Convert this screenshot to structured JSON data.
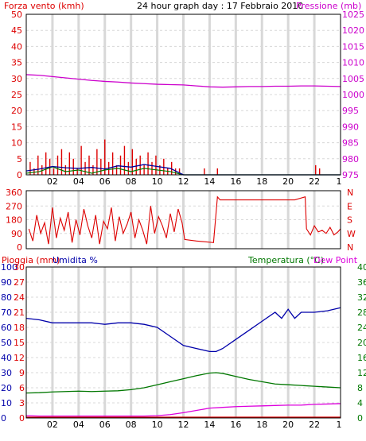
{
  "header": {
    "left_label": "Forza vento (kmh)",
    "title": "24 hour graph day : 17 Febbraio 2010",
    "right_label": "Pressione (mb)"
  },
  "colors": {
    "wind": "#dd0000",
    "pressure": "#cc00cc",
    "gust_blue": "#000099",
    "green": "#007700",
    "direction": "#dd0000",
    "humidity": "#0000aa",
    "temperature": "#007700",
    "dewpoint": "#dd00dd",
    "grid": "#d8d8d8",
    "frame": "#000000"
  },
  "chart_data": [
    {
      "type": "line",
      "name": "wind_pressure",
      "title": "24 hour graph day : 17 Febbraio 2010",
      "ylabel_left": "Forza vento (kmh)",
      "ylabel_right": "Pressione (mb)",
      "xticks": [
        "02",
        "04",
        "06",
        "08",
        "10",
        "12",
        "14",
        "16",
        "18",
        "20",
        "22",
        "1"
      ],
      "yticks_left": [
        "0",
        "5",
        "10",
        "15",
        "20",
        "25",
        "30",
        "35",
        "40",
        "45",
        "50"
      ],
      "yticks_right": [
        "975",
        "980",
        "985",
        "990",
        "995",
        "1000",
        "1005",
        "1010",
        "1015",
        "1020",
        "1025"
      ],
      "ylim_left": [
        0,
        50
      ],
      "ylim_right": [
        975,
        1025
      ],
      "pressure": {
        "x": [
          0,
          1,
          2,
          3,
          4,
          5,
          6,
          7,
          8,
          9,
          10,
          11,
          12,
          13,
          14,
          15,
          16,
          17,
          18,
          19,
          20,
          21,
          22,
          23,
          24
        ],
        "y": [
          1006.2,
          1006.0,
          1005.6,
          1005.2,
          1004.8,
          1004.4,
          1004.1,
          1003.9,
          1003.6,
          1003.4,
          1003.2,
          1003.1,
          1003.0,
          1002.7,
          1002.4,
          1002.3,
          1002.4,
          1002.5,
          1002.5,
          1002.6,
          1002.6,
          1002.7,
          1002.7,
          1002.6,
          1002.5
        ]
      },
      "wind_gust_bars": {
        "x": [
          0.3,
          0.6,
          0.9,
          1.2,
          1.5,
          1.8,
          2.1,
          2.4,
          2.7,
          3.0,
          3.3,
          3.6,
          3.9,
          4.2,
          4.5,
          4.8,
          5.1,
          5.4,
          5.7,
          6.0,
          6.3,
          6.6,
          6.9,
          7.2,
          7.5,
          7.8,
          8.1,
          8.4,
          8.7,
          9.0,
          9.3,
          9.6,
          9.9,
          10.2,
          10.5,
          10.8,
          11.1,
          11.4,
          11.7,
          13.6,
          14.6,
          22.1,
          22.4
        ],
        "y": [
          4,
          2,
          6,
          3,
          7,
          5,
          2,
          6,
          8,
          3,
          7,
          5,
          2,
          9,
          4,
          6,
          3,
          8,
          5,
          11,
          4,
          7,
          3,
          6,
          9,
          4,
          8,
          5,
          6,
          3,
          7,
          4,
          6,
          3,
          5,
          2,
          4,
          2,
          2,
          2,
          2,
          3,
          2
        ]
      },
      "wind_avg": {
        "x": [
          0,
          1,
          2,
          3,
          4,
          5,
          6,
          7,
          8,
          9,
          10,
          11,
          11.5,
          12,
          24
        ],
        "y": [
          1.2,
          1.8,
          2.6,
          2.2,
          2.0,
          2.3,
          1.8,
          2.8,
          2.4,
          3.2,
          2.6,
          2.0,
          1.0,
          0,
          0
        ]
      },
      "green_series": {
        "x": [
          0,
          1,
          2,
          3,
          4,
          5,
          6,
          7,
          8,
          9,
          10,
          11,
          12,
          24
        ],
        "y": [
          0.5,
          1.0,
          2.5,
          1.0,
          1.5,
          0.5,
          1.5,
          2.0,
          1.0,
          2.0,
          1.5,
          1.0,
          0,
          0
        ]
      }
    },
    {
      "type": "line",
      "name": "wind_direction",
      "yticks_left": [
        "0",
        "90",
        "180",
        "270",
        "360"
      ],
      "ylim_left": [
        0,
        360
      ],
      "yticks_right": [
        "N",
        "W",
        "S",
        "E",
        "N"
      ],
      "direction": {
        "x": [
          0.2,
          0.5,
          0.8,
          1.1,
          1.4,
          1.7,
          2.0,
          2.3,
          2.6,
          2.9,
          3.2,
          3.5,
          3.8,
          4.1,
          4.4,
          4.7,
          5.0,
          5.3,
          5.6,
          5.9,
          6.2,
          6.5,
          6.8,
          7.1,
          7.4,
          7.7,
          8.0,
          8.3,
          8.6,
          8.9,
          9.2,
          9.5,
          9.8,
          10.1,
          10.4,
          10.7,
          11.0,
          11.3,
          11.6,
          11.9,
          12.1,
          13.0,
          14.3,
          14.6,
          14.8,
          15.5,
          17.0,
          19.0,
          20.5,
          21.3,
          21.4,
          21.7,
          22.0,
          22.3,
          22.6,
          22.9,
          23.2,
          23.5,
          23.8,
          24.0
        ],
        "y": [
          120,
          40,
          210,
          90,
          160,
          20,
          260,
          60,
          190,
          110,
          230,
          30,
          180,
          80,
          250,
          140,
          60,
          210,
          20,
          170,
          120,
          260,
          40,
          200,
          90,
          150,
          230,
          60,
          180,
          110,
          20,
          270,
          90,
          200,
          140,
          60,
          220,
          100,
          250,
          160,
          50,
          40,
          30,
          330,
          310,
          310,
          310,
          310,
          310,
          330,
          120,
          80,
          140,
          100,
          110,
          90,
          130,
          80,
          100,
          120
        ]
      }
    },
    {
      "type": "line",
      "name": "temp_humidity",
      "ylabel_left_1": "Pioggia (mm)",
      "ylabel_left_2": "Umidita %",
      "ylabel_right_1": "Temperatura (°C)",
      "ylabel_right_2": "Dew Point",
      "yticks_rain": [
        "0",
        "3",
        "6",
        "9",
        "12",
        "15",
        "18",
        "21",
        "24",
        "27",
        "30"
      ],
      "yticks_humidity": [
        "0",
        "10",
        "20",
        "30",
        "40",
        "50",
        "60",
        "70",
        "80",
        "90",
        "100"
      ],
      "yticks_temp": [
        "0",
        "4",
        "8",
        "12",
        "16",
        "20",
        "24",
        "28",
        "32",
        "36",
        "40"
      ],
      "ylim_humidity": [
        0,
        100
      ],
      "ylim_temp": [
        0,
        40
      ],
      "humidity": {
        "x": [
          0,
          1,
          2,
          3,
          4,
          5,
          6,
          7,
          8,
          9,
          10,
          11,
          12,
          13,
          14,
          14.5,
          15,
          16,
          17,
          18,
          19,
          19.5,
          20,
          20.5,
          21,
          22,
          23,
          24
        ],
        "y": [
          66,
          65,
          63,
          63,
          63,
          63,
          62,
          63,
          63,
          62,
          60,
          54,
          48,
          46,
          44,
          44,
          46,
          52,
          58,
          64,
          70,
          66,
          72,
          66,
          70,
          70,
          71,
          73
        ]
      },
      "temperature": {
        "x": [
          0,
          1,
          2,
          3,
          4,
          5,
          6,
          7,
          8,
          9,
          10,
          11,
          12,
          13,
          14,
          14.5,
          15,
          16,
          17,
          18,
          19,
          20,
          21,
          22,
          23,
          24
        ],
        "y": [
          6.6,
          6.7,
          6.9,
          7.0,
          7.1,
          7.0,
          7.1,
          7.2,
          7.5,
          8.0,
          8.8,
          9.6,
          10.4,
          11.2,
          11.9,
          12.0,
          11.8,
          11.0,
          10.2,
          9.6,
          9.0,
          8.8,
          8.6,
          8.4,
          8.2,
          8.0
        ]
      },
      "dewpoint": {
        "x": [
          0,
          1,
          2,
          3,
          4,
          5,
          6,
          7,
          8,
          9,
          10,
          11,
          12,
          13,
          14,
          15,
          16,
          17,
          18,
          19,
          20,
          21,
          22,
          23,
          24
        ],
        "y": [
          0.6,
          0.5,
          0.5,
          0.5,
          0.5,
          0.5,
          0.5,
          0.5,
          0.5,
          0.5,
          0.6,
          0.9,
          1.4,
          2.0,
          2.6,
          2.8,
          3.0,
          3.1,
          3.2,
          3.3,
          3.4,
          3.4,
          3.6,
          3.7,
          3.8
        ]
      },
      "rain": {
        "x": [
          0,
          24
        ],
        "y": [
          0,
          0
        ]
      }
    }
  ]
}
